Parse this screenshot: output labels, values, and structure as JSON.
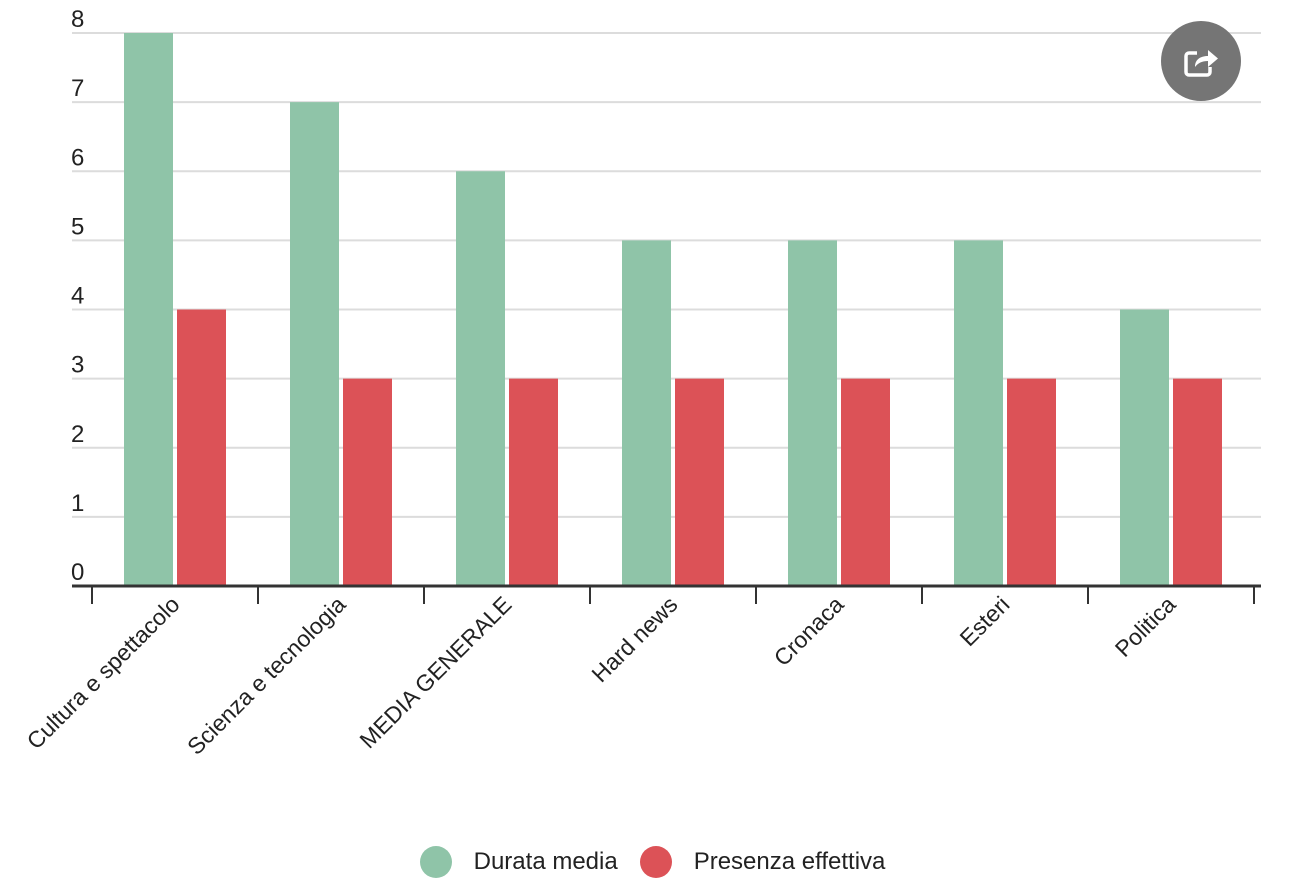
{
  "chart_data": {
    "type": "bar",
    "categories": [
      "Cultura e spettacolo",
      "Scienza e tecnologia",
      "MEDIA GENERALE",
      "Hard news",
      "Cronaca",
      "Esteri",
      "Politica"
    ],
    "series": [
      {
        "name": "Durata media",
        "color": "#8fc4a8",
        "values": [
          8,
          7,
          6,
          5,
          5,
          5,
          4
        ]
      },
      {
        "name": "Presenza effettiva",
        "color": "#dc5257",
        "values": [
          4,
          3,
          3,
          3,
          3,
          3,
          3
        ]
      }
    ],
    "yticks": [
      "0",
      "1",
      "2",
      "3",
      "4",
      "5",
      "6",
      "7",
      "8"
    ],
    "ylim": [
      0,
      8
    ],
    "title": "",
    "xlabel": "",
    "ylabel": "",
    "grid": true,
    "legend_position": "bottom-center"
  },
  "share": {
    "icon": "share-icon"
  }
}
